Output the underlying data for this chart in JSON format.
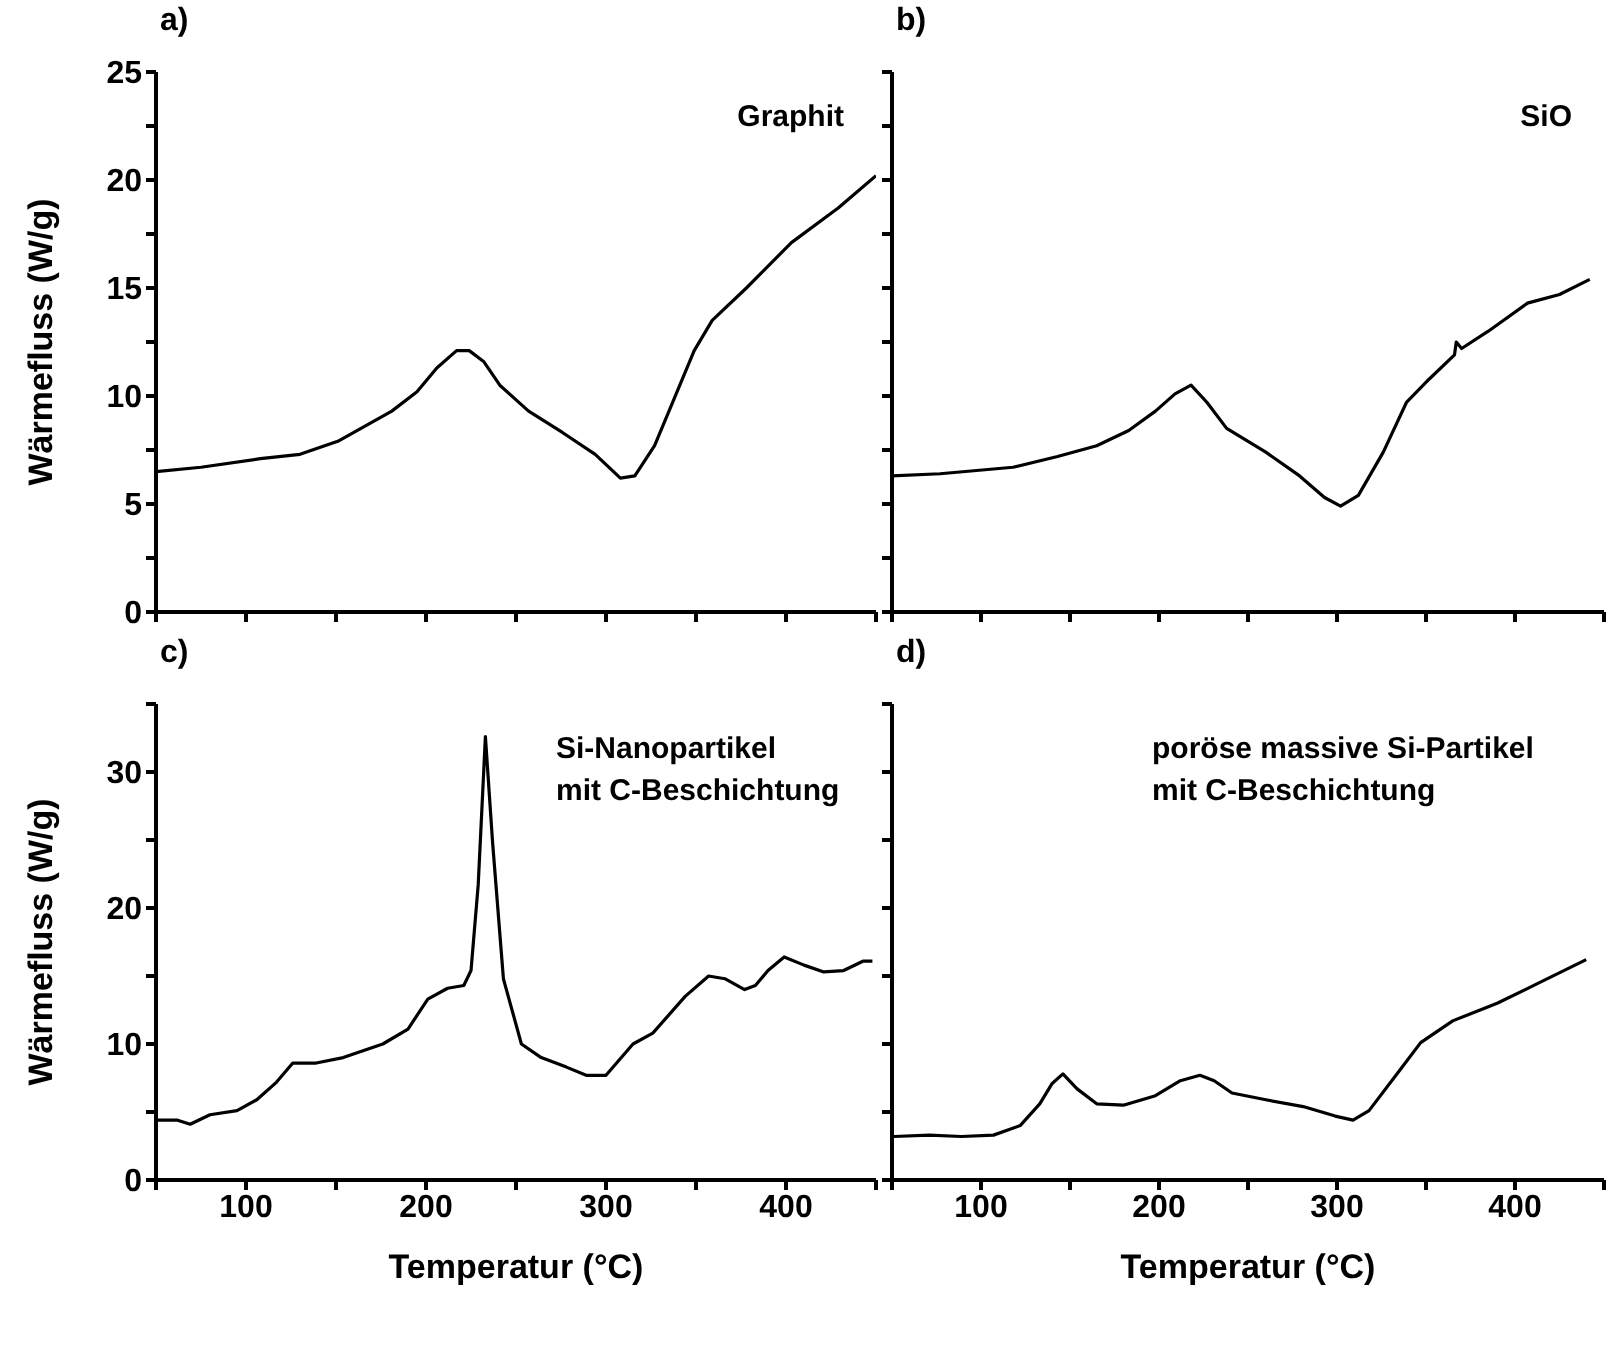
{
  "chart_data": [
    {
      "type": "line",
      "title": "a)",
      "ylabel": "Wärmefluss (W/g)",
      "annotations": [
        "Graphit"
      ],
      "tick_labels": "y",
      "xlim": [
        50,
        450
      ],
      "ylim": [
        0,
        25
      ],
      "xticks": [
        {
          "value": 50,
          "label": null
        },
        {
          "value": 100,
          "label": null
        },
        {
          "value": 150,
          "label": null
        },
        {
          "value": 200,
          "label": null
        },
        {
          "value": 250,
          "label": null
        },
        {
          "value": 300,
          "label": null
        },
        {
          "value": 350,
          "label": null
        },
        {
          "value": 400,
          "label": null
        },
        {
          "value": 450,
          "label": null
        }
      ],
      "yticks": [
        0,
        {
          "value": 2.5,
          "label": null
        },
        5,
        {
          "value": 7.5,
          "label": null
        },
        10,
        {
          "value": 12.5,
          "label": null
        },
        15,
        {
          "value": 17.5,
          "label": null
        },
        20,
        {
          "value": 22.5,
          "label": null
        },
        25
      ],
      "series": [
        {
          "color": "#000000",
          "x": [
            50,
            75,
            108,
            130,
            151,
            181,
            195,
            206,
            217,
            224,
            232,
            241,
            257,
            276,
            294,
            308,
            316,
            327,
            338,
            349,
            359,
            378,
            403,
            429,
            450
          ],
          "values": [
            6.5,
            6.7,
            7.1,
            7.3,
            7.9,
            9.3,
            10.2,
            11.3,
            12.1,
            12.1,
            11.6,
            10.5,
            9.3,
            8.3,
            7.3,
            6.2,
            6.3,
            7.7,
            9.9,
            12.1,
            13.5,
            15.0,
            17.1,
            18.7,
            20.2
          ]
        }
      ]
    },
    {
      "type": "line",
      "title": "b)",
      "annotations": [
        "SiO"
      ],
      "tick_labels": false,
      "xlim": [
        50,
        450
      ],
      "ylim": [
        0,
        25
      ],
      "xticks": [
        {
          "value": 50,
          "label": null
        },
        {
          "value": 100,
          "label": null
        },
        {
          "value": 150,
          "label": null
        },
        {
          "value": 200,
          "label": null
        },
        {
          "value": 250,
          "label": null
        },
        {
          "value": 300,
          "label": null
        },
        {
          "value": 350,
          "label": null
        },
        {
          "value": 400,
          "label": null
        },
        {
          "value": 450,
          "label": null
        }
      ],
      "yticks": [
        {
          "value": 0,
          "label": null
        },
        {
          "value": 2.5,
          "label": null
        },
        {
          "value": 5,
          "label": null
        },
        {
          "value": 7.5,
          "label": null
        },
        {
          "value": 10,
          "label": null
        },
        {
          "value": 12.5,
          "label": null
        },
        {
          "value": 15,
          "label": null
        },
        {
          "value": 17.5,
          "label": null
        },
        {
          "value": 20,
          "label": null
        },
        {
          "value": 22.5,
          "label": null
        },
        {
          "value": 25,
          "label": null
        }
      ],
      "series": [
        {
          "color": "#000000",
          "x": [
            50,
            77,
            118,
            143,
            165,
            183,
            198,
            209,
            218,
            227,
            238,
            260,
            279,
            293,
            302,
            312,
            326,
            339,
            352,
            366,
            367,
            370,
            385,
            407,
            425,
            442
          ],
          "values": [
            6.3,
            6.4,
            6.7,
            7.2,
            7.7,
            8.4,
            9.3,
            10.1,
            10.5,
            9.7,
            8.5,
            7.4,
            6.3,
            5.3,
            4.9,
            5.4,
            7.4,
            9.7,
            10.8,
            11.9,
            12.5,
            12.2,
            13.0,
            14.3,
            14.7,
            15.4
          ]
        }
      ]
    },
    {
      "type": "line",
      "title": "c)",
      "xlabel": "Temperatur (°C)",
      "ylabel": "Wärmefluss (W/g)",
      "annotations": [
        "Si-Nanopartikel",
        "mit C-Beschichtung"
      ],
      "xlim": [
        50,
        450
      ],
      "ylim": [
        0,
        35
      ],
      "xticks": [
        {
          "value": 50,
          "label": null
        },
        100,
        {
          "value": 150,
          "label": null
        },
        200,
        {
          "value": 250,
          "label": null
        },
        300,
        {
          "value": 350,
          "label": null
        },
        400,
        {
          "value": 450,
          "label": null
        }
      ],
      "yticks": [
        0,
        {
          "value": 5,
          "label": null
        },
        10,
        {
          "value": 15,
          "label": null
        },
        20,
        {
          "value": 25,
          "label": null
        },
        30,
        {
          "value": 35,
          "label": null
        }
      ],
      "series": [
        {
          "color": "#000000",
          "x": [
            51,
            62,
            69,
            80,
            95,
            106,
            117,
            126,
            139,
            154,
            176,
            190,
            201,
            212,
            221,
            225,
            229,
            233,
            237,
            243,
            253,
            264,
            278,
            289,
            300,
            315,
            326,
            344,
            357,
            366,
            377,
            383,
            390,
            399,
            410,
            421,
            432,
            443,
            448
          ],
          "values": [
            4.4,
            4.4,
            4.1,
            4.8,
            5.1,
            5.9,
            7.2,
            8.6,
            8.6,
            9.0,
            10.0,
            11.1,
            13.3,
            14.1,
            14.3,
            15.4,
            21.7,
            32.6,
            24.8,
            14.8,
            10.0,
            9.0,
            8.3,
            7.7,
            7.7,
            10.0,
            10.8,
            13.5,
            15.0,
            14.8,
            14.0,
            14.3,
            15.4,
            16.4,
            15.8,
            15.3,
            15.4,
            16.1,
            16.1
          ]
        }
      ]
    },
    {
      "type": "line",
      "title": "d)",
      "xlabel": "Temperatur (°C)",
      "annotations": [
        "poröse massive Si-Partikel",
        "mit C-Beschichtung"
      ],
      "tick_labels": "x",
      "xlim": [
        50,
        450
      ],
      "ylim": [
        0,
        35
      ],
      "xticks": [
        {
          "value": 50,
          "label": null
        },
        100,
        {
          "value": 150,
          "label": null
        },
        200,
        {
          "value": 250,
          "label": null
        },
        300,
        {
          "value": 350,
          "label": null
        },
        400,
        {
          "value": 450,
          "label": null
        }
      ],
      "yticks": [
        {
          "value": 0,
          "label": null
        },
        {
          "value": 5,
          "label": null
        },
        {
          "value": 10,
          "label": null
        },
        {
          "value": 15,
          "label": null
        },
        {
          "value": 20,
          "label": null
        },
        {
          "value": 25,
          "label": null
        },
        {
          "value": 30,
          "label": null
        },
        {
          "value": 35,
          "label": null
        }
      ],
      "series": [
        {
          "color": "#000000",
          "x": [
            51,
            71,
            89,
            107,
            122,
            133,
            140,
            146,
            154,
            165,
            180,
            198,
            212,
            223,
            231,
            241,
            260,
            281,
            299,
            309,
            318,
            336,
            347,
            365,
            390,
            412,
            440
          ],
          "values": [
            3.2,
            3.3,
            3.2,
            3.3,
            4.0,
            5.6,
            7.1,
            7.8,
            6.7,
            5.6,
            5.5,
            6.2,
            7.3,
            7.7,
            7.3,
            6.4,
            5.9,
            5.4,
            4.7,
            4.4,
            5.1,
            8.2,
            10.1,
            11.7,
            13.0,
            14.4,
            16.2
          ]
        }
      ]
    }
  ]
}
